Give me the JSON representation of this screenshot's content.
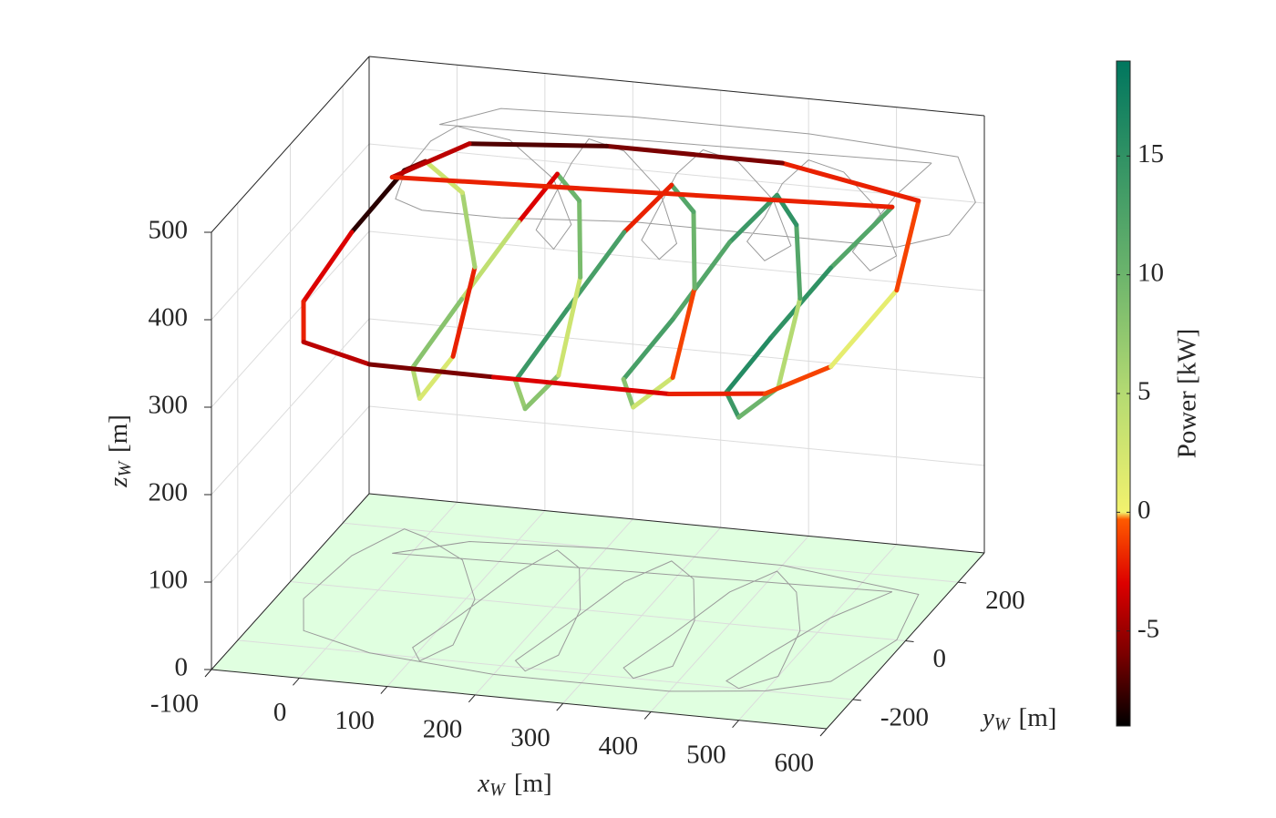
{
  "chart_data": {
    "type": "line3d",
    "x": [
      540,
      500,
      470,
      450,
      470,
      500,
      480,
      440,
      400,
      370,
      350,
      330,
      350,
      380,
      360,
      320,
      280,
      250,
      230,
      210,
      230,
      250,
      230,
      190,
      150,
      130,
      110,
      90,
      110,
      130,
      110,
      60,
      0,
      -30,
      -60,
      -70,
      -40,
      50,
      200,
      400,
      500,
      560,
      590,
      570,
      400,
      200,
      50,
      -20
    ],
    "y": [
      150,
      50,
      -80,
      -180,
      -200,
      -150,
      0,
      120,
      180,
      100,
      -50,
      -170,
      -200,
      -150,
      0,
      130,
      180,
      100,
      -50,
      -180,
      -210,
      -150,
      0,
      130,
      180,
      100,
      -50,
      -170,
      -210,
      -150,
      0,
      120,
      180,
      200,
      100,
      -50,
      -150,
      -200,
      -230,
      -230,
      -200,
      -150,
      0,
      150,
      200,
      200,
      180,
      120
    ],
    "z": [
      440,
      400,
      360,
      330,
      310,
      330,
      380,
      420,
      430,
      400,
      360,
      330,
      310,
      330,
      380,
      420,
      430,
      400,
      360,
      320,
      300,
      320,
      380,
      420,
      430,
      400,
      360,
      320,
      300,
      330,
      380,
      420,
      430,
      410,
      370,
      340,
      330,
      330,
      340,
      340,
      340,
      360,
      400,
      450,
      460,
      460,
      455,
      430
    ],
    "power": [
      12,
      15,
      16,
      14,
      10,
      5,
      12,
      15,
      14,
      12,
      13,
      8,
      3,
      -1,
      10,
      12,
      -2,
      13,
      14,
      7,
      8,
      3,
      9,
      10,
      -3,
      4,
      8,
      5,
      2,
      -2,
      6,
      3,
      -6,
      -8,
      -3,
      -2,
      -4,
      -6,
      -3,
      -2,
      -1,
      1,
      -1,
      -2,
      -6,
      -7,
      -4,
      -2
    ],
    "xlim": [
      -100,
      600
    ],
    "ylim": [
      -300,
      300
    ],
    "zlim": [
      0,
      500
    ],
    "xticks": [
      -100,
      0,
      100,
      200,
      300,
      400,
      500,
      600
    ],
    "yticks": [
      -200,
      0,
      200
    ],
    "zticks": [
      0,
      100,
      200,
      300,
      400,
      500
    ],
    "clim": [
      -9,
      19
    ],
    "cticks": [
      -5,
      0,
      5,
      10,
      15
    ],
    "colormap": [
      {
        "value": -9,
        "color": "#000000"
      },
      {
        "value": -6,
        "color": "#7a0000"
      },
      {
        "value": -3,
        "color": "#dc0000"
      },
      {
        "value": -0.3,
        "color": "#ff5a00"
      },
      {
        "value": 0,
        "color": "#f2f26e"
      },
      {
        "value": 5,
        "color": "#b4da72"
      },
      {
        "value": 10,
        "color": "#6cb46c"
      },
      {
        "value": 19,
        "color": "#00765e"
      }
    ],
    "xlabel": {
      "symbol": "x",
      "sub": "W",
      "unit": "[m]"
    },
    "ylabel": {
      "symbol": "y",
      "sub": "W",
      "unit": "[m]"
    },
    "zlabel": {
      "symbol": "z",
      "sub": "W",
      "unit": "[m]"
    },
    "colorbar_label": "Power [kW]",
    "floor_color": "#e0ffe0",
    "shadow_color": "#9a9a9a",
    "grid": true
  }
}
